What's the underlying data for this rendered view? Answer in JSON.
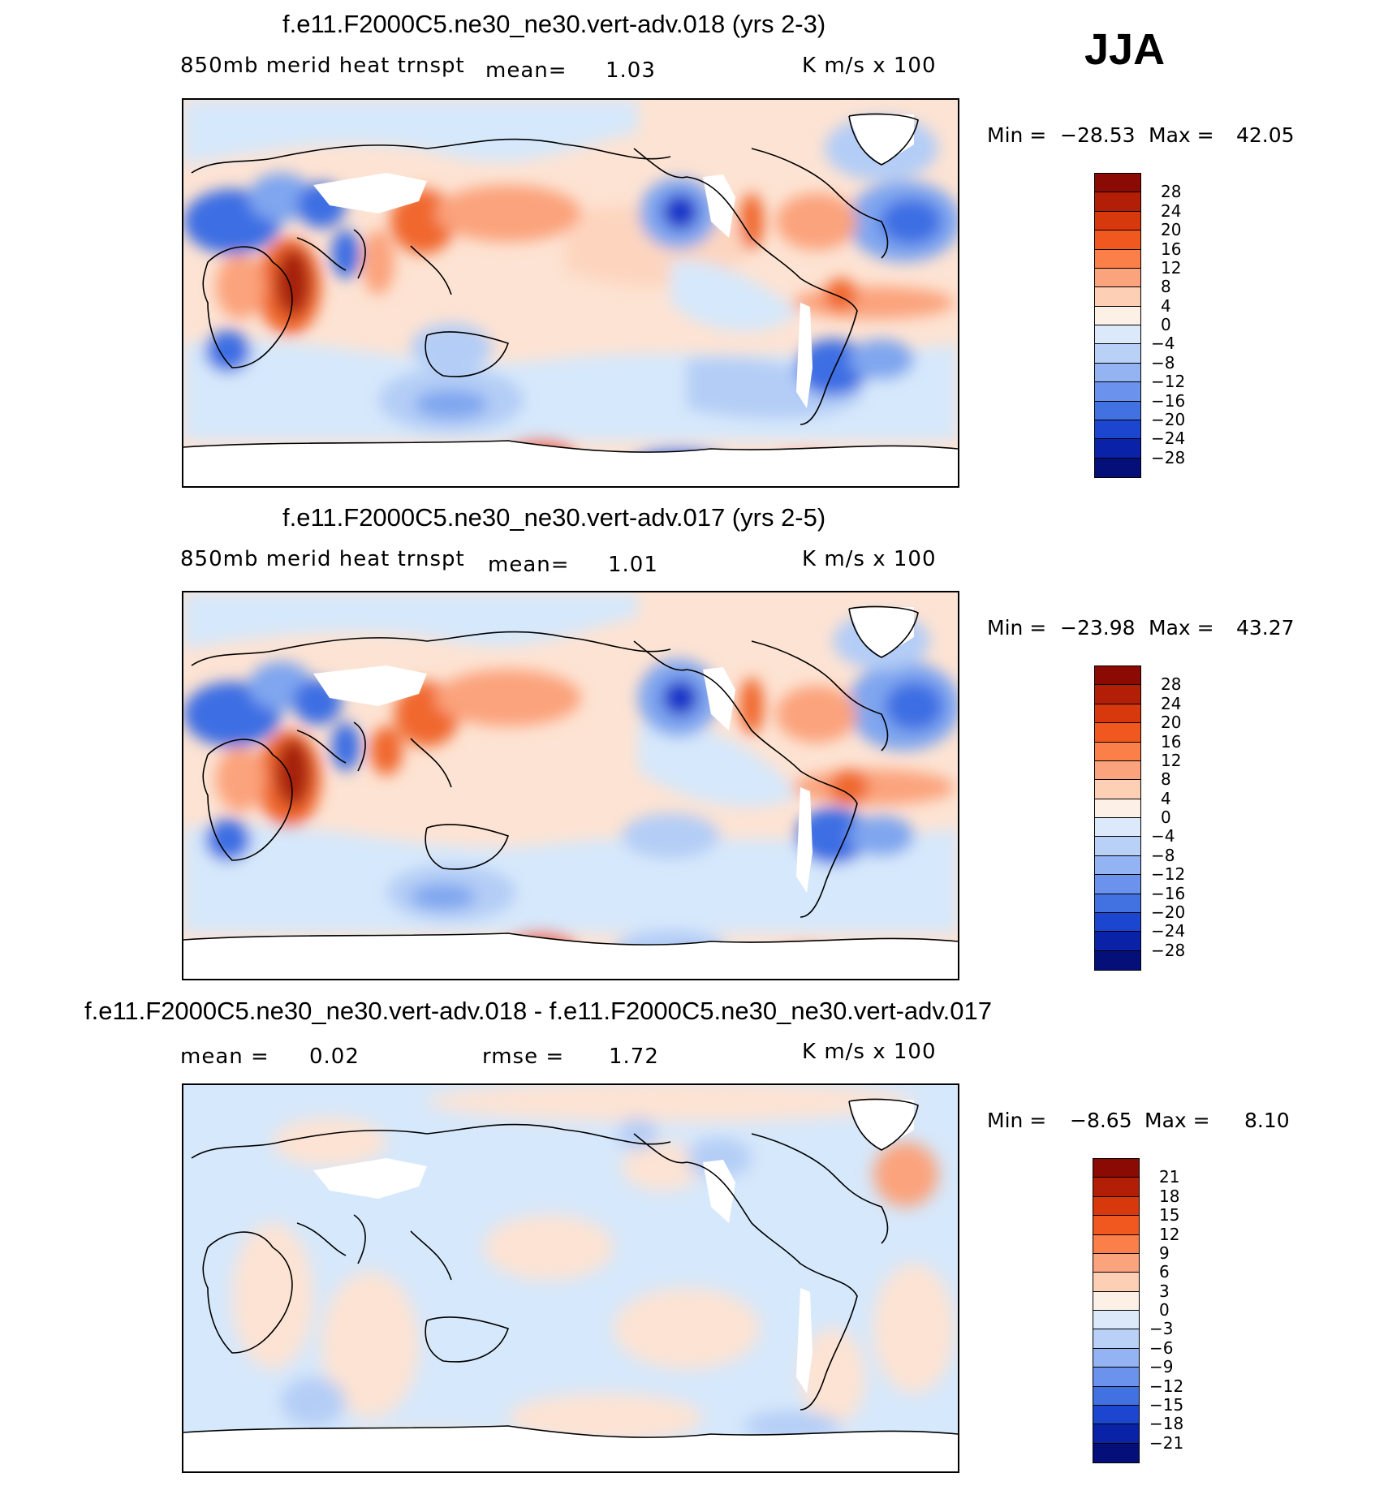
{
  "season": "JJA",
  "palette": {
    "ocean_light_blue": "#d6e8fb",
    "light_blue": "#b4cdf6",
    "mid_blue": "#7fa6ef",
    "strong_blue": "#3e6ee3",
    "deep_blue": "#1634c8",
    "light_orange": "#fdd5bf",
    "mid_orange": "#fba37c",
    "strong_orange": "#f0672e",
    "deep_red": "#a6200a"
  },
  "panels": [
    {
      "title": "f.e11.F2000C5.ne30_ne30.vert-adv.018 (yrs 2-3)",
      "variable": "850mb merid heat trnspt",
      "mean_label": "mean=",
      "mean_value": "1.03",
      "units": "K m/s x 100",
      "min_label": "Min =",
      "min_value": "-28.53",
      "max_label": "Max =",
      "max_value": "42.05",
      "colorbar": {
        "ticks": [
          "28",
          "24",
          "20",
          "16",
          "12",
          "8",
          "4",
          "0",
          "-4",
          "-8",
          "-12",
          "-16",
          "-20",
          "-24",
          "-28"
        ],
        "colors": [
          "#8b0a04",
          "#b31e06",
          "#d8390c",
          "#f0581f",
          "#fa7f48",
          "#fba37c",
          "#fdd0b5",
          "#fdf0e6",
          "#dbe9fb",
          "#bad1f7",
          "#93b3f2",
          "#6b92ec",
          "#4271e2",
          "#1c46d0",
          "#0a22a8",
          "#050f7a"
        ]
      }
    },
    {
      "title": "f.e11.F2000C5.ne30_ne30.vert-adv.017 (yrs 2-5)",
      "variable": "850mb merid heat trnspt",
      "mean_label": "mean=",
      "mean_value": "1.01",
      "units": "K m/s x 100",
      "min_label": "Min =",
      "min_value": "-23.98",
      "max_label": "Max =",
      "max_value": "43.27",
      "colorbar": {
        "ticks": [
          "28",
          "24",
          "20",
          "16",
          "12",
          "8",
          "4",
          "0",
          "-4",
          "-8",
          "-12",
          "-16",
          "-20",
          "-24",
          "-28"
        ],
        "colors": [
          "#8b0a04",
          "#b31e06",
          "#d8390c",
          "#f0581f",
          "#fa7f48",
          "#fba37c",
          "#fdd0b5",
          "#fdf0e6",
          "#dbe9fb",
          "#bad1f7",
          "#93b3f2",
          "#6b92ec",
          "#4271e2",
          "#1c46d0",
          "#0a22a8",
          "#050f7a"
        ]
      }
    },
    {
      "title": "f.e11.F2000C5.ne30_ne30.vert-adv.018 - f.e11.F2000C5.ne30_ne30.vert-adv.017",
      "mean_label": "mean =",
      "mean_value": "0.02",
      "rmse_label": "rmse =",
      "rmse_value": "1.72",
      "units": "K m/s x 100",
      "min_label": "Min =",
      "min_value": "-8.65",
      "max_label": "Max =",
      "max_value": "8.10",
      "colorbar": {
        "ticks": [
          "21",
          "18",
          "15",
          "12",
          "9",
          "6",
          "3",
          "0",
          "-3",
          "-6",
          "-9",
          "-12",
          "-15",
          "-18",
          "-21"
        ],
        "colors": [
          "#8b0a04",
          "#b31e06",
          "#d8390c",
          "#f0581f",
          "#fa7f48",
          "#fba37c",
          "#fdd0b5",
          "#fdf0e6",
          "#dbe9fb",
          "#bad1f7",
          "#93b3f2",
          "#6b92ec",
          "#4271e2",
          "#1c46d0",
          "#0a22a8",
          "#050f7a"
        ]
      }
    }
  ]
}
